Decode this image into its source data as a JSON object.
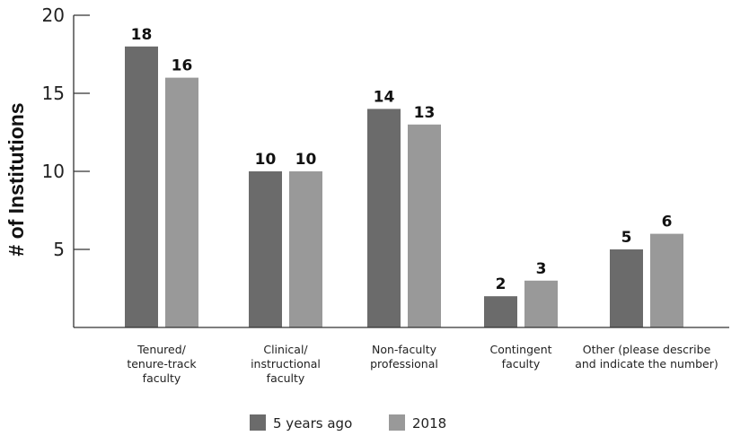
{
  "chart_data": {
    "type": "bar",
    "title": "",
    "xlabel": "",
    "ylabel": "# of Institutions",
    "ylim": [
      0,
      20
    ],
    "yticks": [
      5,
      10,
      15,
      20
    ],
    "grid": false,
    "legend_position": "bottom",
    "categories": [
      [
        "Tenured/",
        "tenure-track",
        "faculty"
      ],
      [
        "Clinical/",
        "instructional",
        "faculty"
      ],
      [
        "Non-faculty",
        "professional"
      ],
      [
        "Contingent",
        "faculty"
      ],
      [
        "Other (please describe",
        "and indicate the number)"
      ]
    ],
    "series": [
      {
        "name": "5 years ago",
        "color": "#6b6b6b",
        "values": [
          18,
          10,
          14,
          2,
          5
        ]
      },
      {
        "name": "2018",
        "color": "#999999",
        "values": [
          16,
          10,
          13,
          3,
          6
        ]
      }
    ]
  }
}
